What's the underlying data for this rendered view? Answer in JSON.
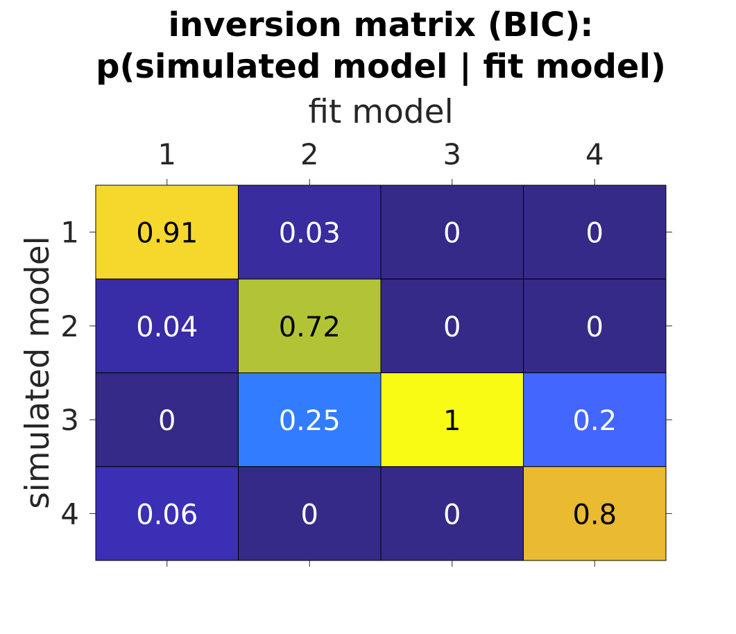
{
  "chart_data": {
    "type": "heatmap",
    "title": "inversion matrix (BIC):",
    "subtitle": "p(simulated model | fit model)",
    "xlabel": "fit model",
    "ylabel": "simulated model",
    "x_categories": [
      "1",
      "2",
      "3",
      "4"
    ],
    "y_categories": [
      "1",
      "2",
      "3",
      "4"
    ],
    "x_axis_position": "top",
    "colormap": "parula",
    "value_range": [
      0,
      1
    ],
    "values": [
      [
        0.91,
        0.03,
        0,
        0
      ],
      [
        0.04,
        0.72,
        0,
        0
      ],
      [
        0,
        0.25,
        1,
        0.2
      ],
      [
        0.06,
        0,
        0,
        0.8
      ]
    ],
    "cell_labels": [
      [
        "0.91",
        "0.03",
        "0",
        "0"
      ],
      [
        "0.04",
        "0.72",
        "0",
        "0"
      ],
      [
        "0",
        "0.25",
        "1",
        "0.2"
      ],
      [
        "0.06",
        "0",
        "0",
        "0.8"
      ]
    ],
    "grid": true
  }
}
